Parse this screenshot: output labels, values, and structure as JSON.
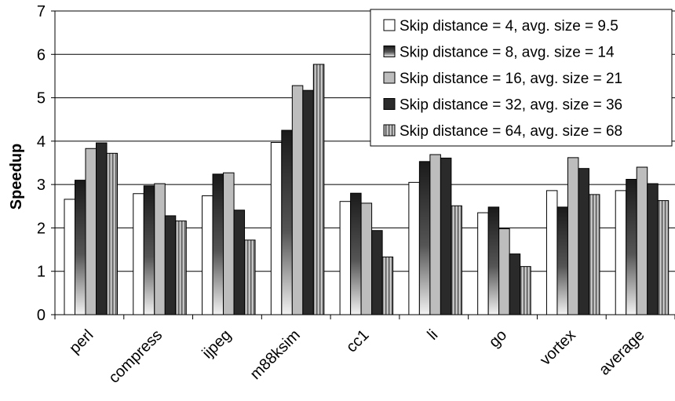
{
  "chart_data": {
    "type": "bar",
    "title": "",
    "xlabel": "",
    "ylabel": "Speedup",
    "ylim": [
      0,
      7
    ],
    "yticks": [
      0,
      1,
      2,
      3,
      4,
      5,
      6,
      7
    ],
    "grid": true,
    "legend_position": "top-right",
    "categories": [
      "perl",
      "compress",
      "ijpeg",
      "m88ksim",
      "cc1",
      "li",
      "go",
      "vortex",
      "average"
    ],
    "series": [
      {
        "name": "Skip distance = 4, avg. size = 9.5",
        "style": "white",
        "values": [
          2.66,
          2.79,
          2.74,
          3.97,
          2.61,
          3.05,
          2.35,
          2.86,
          2.86
        ]
      },
      {
        "name": "Skip distance = 8, avg. size = 14",
        "style": "dark-gradient",
        "values": [
          3.1,
          2.97,
          3.24,
          4.25,
          2.8,
          3.53,
          2.48,
          2.48,
          3.12
        ]
      },
      {
        "name": "Skip distance = 16, avg. size = 21",
        "style": "light-gray",
        "values": [
          3.83,
          3.02,
          3.27,
          5.28,
          2.57,
          3.69,
          1.98,
          3.62,
          3.4
        ]
      },
      {
        "name": "Skip distance = 32, avg. size = 36",
        "style": "dark",
        "values": [
          3.96,
          2.28,
          2.41,
          5.17,
          1.94,
          3.61,
          1.4,
          3.37,
          3.02
        ]
      },
      {
        "name": "Skip distance = 64, avg. size = 68",
        "style": "striped",
        "values": [
          3.72,
          2.16,
          1.72,
          5.77,
          1.33,
          2.51,
          1.11,
          2.77,
          2.63
        ]
      }
    ],
    "colors": {
      "white": "#ffffff",
      "light_gray": "#bdbdbd",
      "dark": "#2a2a2a",
      "grid": "#000000",
      "frame": "#000000"
    }
  }
}
